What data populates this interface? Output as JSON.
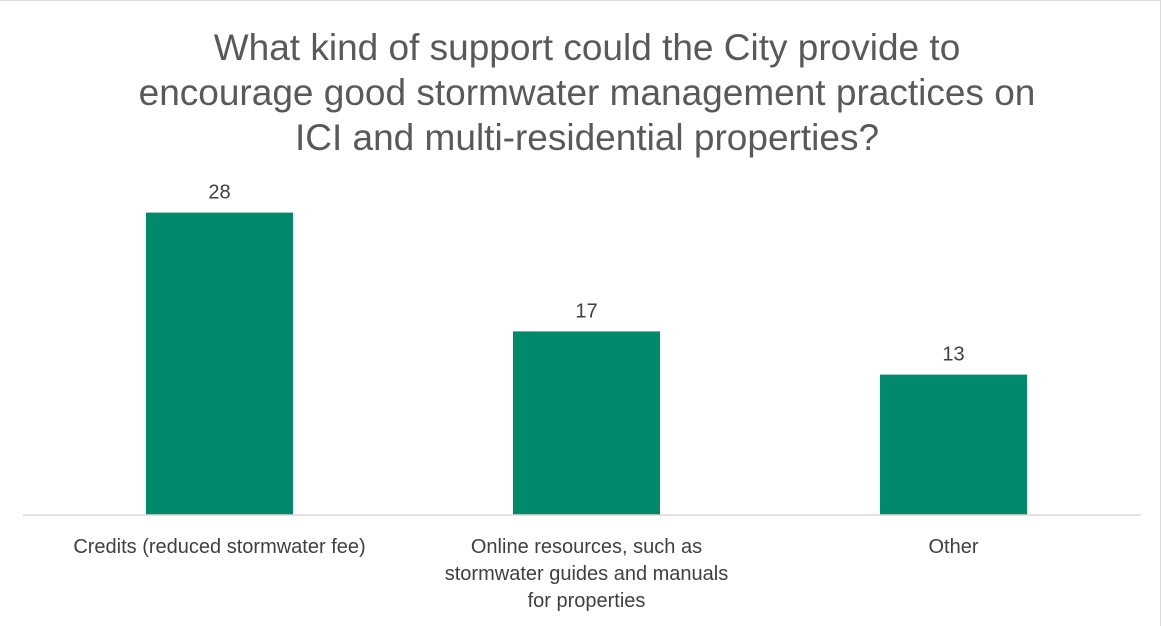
{
  "chart_data": {
    "type": "bar",
    "title": "What kind of support could the City provide to encourage good stormwater management practices on ICI and multi-residential properties?",
    "title_lines": [
      "What kind of support could the City provide to",
      "encourage good stormwater management practices on",
      "ICI and multi-residential properties?"
    ],
    "categories": [
      "Credits (reduced stormwater fee)",
      "Online resources, such as stormwater guides and manuals for properties",
      "Other"
    ],
    "category_lines": [
      [
        "Credits (reduced stormwater fee)"
      ],
      [
        "Online resources, such as",
        "stormwater guides and manuals",
        "for properties"
      ],
      [
        "Other"
      ]
    ],
    "values": [
      28,
      17,
      13
    ],
    "data_labels": [
      "28",
      "17",
      "13"
    ],
    "ylim": [
      0,
      30
    ],
    "xlabel": "",
    "ylabel": "",
    "grid": false,
    "legend": "none",
    "bar_color": "#00896a",
    "axis_color": "#d9d9d9",
    "text_color": "#404040",
    "title_color": "#595959"
  }
}
